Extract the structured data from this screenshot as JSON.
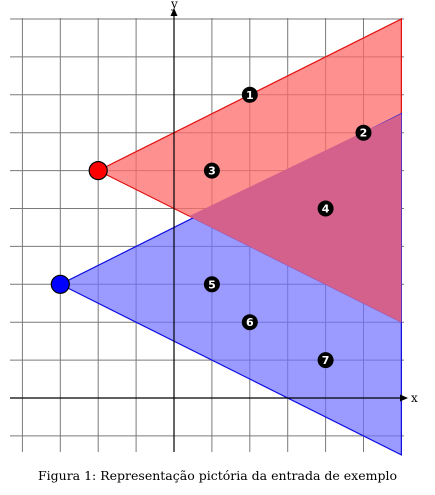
{
  "axes": {
    "x_label": "x",
    "y_label": "y"
  },
  "caption": "Figura 1: Representação pictória da entrada de exemplo",
  "colors": {
    "red_region_fill": "#ff6b6b",
    "red_region_stroke": "#e01010",
    "blue_region_fill": "#7070ff",
    "blue_region_stroke": "#1010e0",
    "overlap_fill": "#d4608c",
    "red_point": "#ff0000",
    "blue_point": "#0000ff",
    "marker_fill": "#000000"
  },
  "origins": [
    {
      "name": "red-origin",
      "color": "red",
      "x": -2,
      "y": 6
    },
    {
      "name": "blue-origin",
      "color": "blue",
      "x": -3,
      "y": 3
    }
  ],
  "markers": [
    {
      "label": "1",
      "x": 2,
      "y": 8
    },
    {
      "label": "2",
      "x": 5,
      "y": 7
    },
    {
      "label": "3",
      "x": 1,
      "y": 6
    },
    {
      "label": "4",
      "x": 4,
      "y": 5
    },
    {
      "label": "5",
      "x": 1,
      "y": 3
    },
    {
      "label": "6",
      "x": 2,
      "y": 2
    },
    {
      "label": "7",
      "x": 4,
      "y": 1
    }
  ]
}
